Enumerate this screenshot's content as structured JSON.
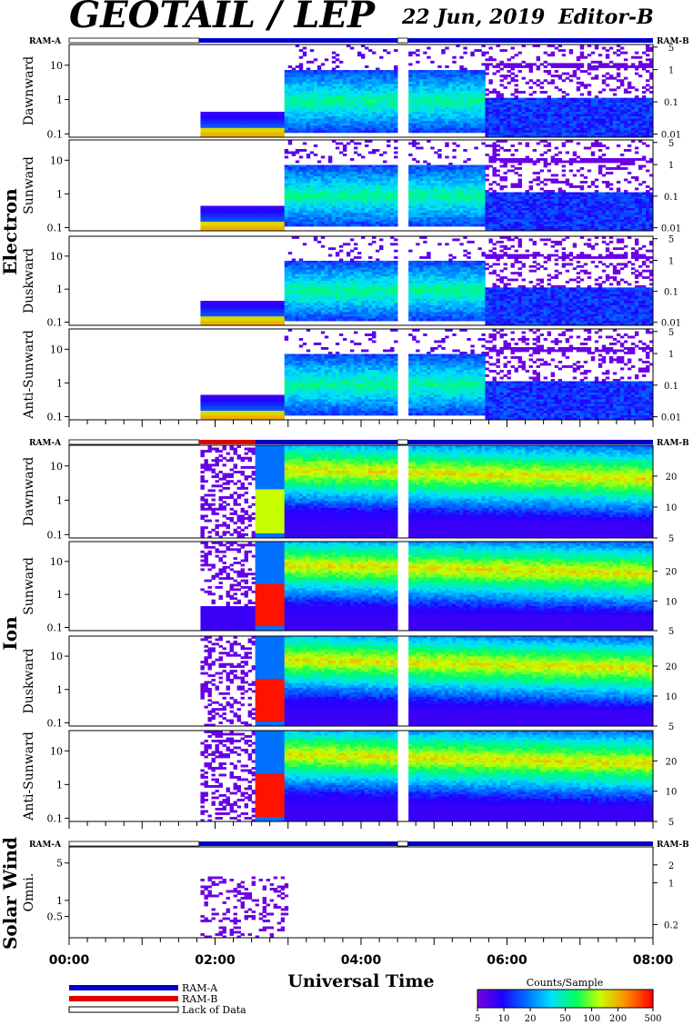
{
  "header": {
    "title": "GEOTAIL / LEP",
    "date": "22 Jun, 2019",
    "editor": "Editor-B"
  },
  "mode_labels": {
    "left": "RAM-A",
    "right": "RAM-B"
  },
  "chart_data": {
    "type": "heatmap",
    "instrument": "GEOTAIL / LEP",
    "date": "22 Jun, 2019",
    "x_axis": {
      "label": "Universal Time",
      "range": [
        "00:00",
        "08:00"
      ],
      "major_ticks": [
        "00:00",
        "02:00",
        "04:00",
        "06:00",
        "08:00"
      ]
    },
    "colorbar": {
      "title": "Counts/Sample",
      "scale": "log",
      "range": [
        5,
        500
      ],
      "tick_labels": [
        "5",
        "10",
        "20",
        "50",
        "100",
        "200",
        "500"
      ],
      "colors": [
        "#7a00e0",
        "#0000ff",
        "#00aaff",
        "#00ffd0",
        "#00ff00",
        "#ffff00",
        "#ff8c00",
        "#ff0000"
      ]
    },
    "legend": {
      "items": [
        {
          "label": "RAM-A",
          "color": "#0000c8"
        },
        {
          "label": "RAM-B",
          "color": "#e00000"
        },
        {
          "label": "Lack of Data",
          "color": "#ffffff"
        }
      ]
    },
    "groups": [
      {
        "name": "Electron",
        "mode_bar": [
          {
            "start": 0.0,
            "end": 1.78,
            "mode": "none"
          },
          {
            "start": 1.78,
            "end": 4.5,
            "mode": "RAM-A"
          },
          {
            "start": 4.5,
            "end": 4.64,
            "mode": "none"
          },
          {
            "start": 4.64,
            "end": 8.0,
            "mode": "RAM-A"
          }
        ],
        "left_ticks": [
          "0.1",
          "1",
          "10"
        ],
        "right_ticks": [
          "0.01",
          "0.1",
          "1",
          "5"
        ],
        "panels": [
          {
            "label": "Dawnward",
            "data_start": 1.78,
            "gaps": [
              [
                4.5,
                4.64
              ]
            ]
          },
          {
            "label": "Sunward",
            "data_start": 1.78,
            "gaps": [
              [
                4.5,
                4.64
              ]
            ]
          },
          {
            "label": "Duskward",
            "data_start": 1.78,
            "gaps": [
              [
                4.5,
                4.64
              ]
            ]
          },
          {
            "label": "Anti-Sunward",
            "data_start": 1.78,
            "gaps": [
              [
                4.5,
                4.64
              ]
            ]
          }
        ]
      },
      {
        "name": "Ion",
        "mode_bar": [
          {
            "start": 0.0,
            "end": 1.78,
            "mode": "none"
          },
          {
            "start": 1.78,
            "end": 2.55,
            "mode": "RAM-B"
          },
          {
            "start": 2.55,
            "end": 4.5,
            "mode": "RAM-A"
          },
          {
            "start": 4.5,
            "end": 4.64,
            "mode": "none"
          },
          {
            "start": 4.64,
            "end": 8.0,
            "mode": "RAM-A"
          }
        ],
        "left_ticks": [
          "0.1",
          "1",
          "10"
        ],
        "right_ticks": [
          "5",
          "10",
          "20"
        ],
        "panels": [
          {
            "label": "Dawnward",
            "data_start": 1.78,
            "gaps": [
              [
                4.5,
                4.64
              ]
            ]
          },
          {
            "label": "Sunward",
            "data_start": 1.78,
            "gaps": [
              [
                4.5,
                4.64
              ]
            ]
          },
          {
            "label": "Duskward",
            "data_start": 1.78,
            "gaps": [
              [
                4.5,
                4.64
              ]
            ]
          },
          {
            "label": "Anti-Sunward",
            "data_start": 1.78,
            "gaps": [
              [
                4.5,
                4.64
              ]
            ]
          }
        ]
      },
      {
        "name": "Solar Wind",
        "mode_bar": [
          {
            "start": 0.0,
            "end": 1.78,
            "mode": "none"
          },
          {
            "start": 1.78,
            "end": 4.5,
            "mode": "RAM-A"
          },
          {
            "start": 4.5,
            "end": 4.64,
            "mode": "none"
          },
          {
            "start": 4.64,
            "end": 8.0,
            "mode": "RAM-A"
          }
        ],
        "left_ticks": [
          "0.5",
          "1",
          "5"
        ],
        "right_ticks": [
          "0.2",
          "1",
          "2"
        ],
        "panels": [
          {
            "label": "Omni.",
            "data_start": 1.78,
            "data_end": 2.98
          }
        ]
      }
    ]
  }
}
